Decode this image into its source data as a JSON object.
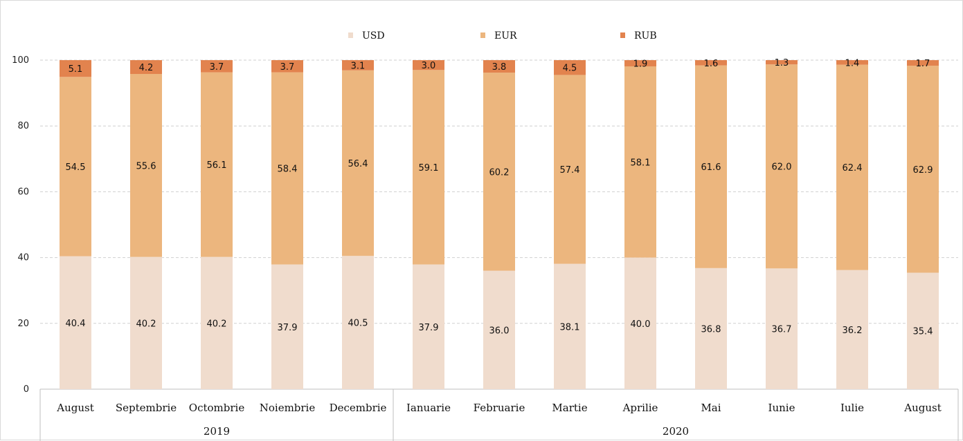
{
  "chart_data": {
    "type": "bar",
    "stacked": true,
    "title": "",
    "xlabel": "",
    "ylabel": "",
    "ylim": [
      0,
      100
    ],
    "yticks": [
      0,
      20,
      40,
      60,
      80,
      100
    ],
    "grid": true,
    "legend_position": "top",
    "categories": [
      "August",
      "Septembrie",
      "Octombrie",
      "Noiembrie",
      "Decembrie",
      "Ianuarie",
      "Februarie",
      "Martie",
      "Aprilie",
      "Mai",
      "Iunie",
      "Iulie",
      "August"
    ],
    "groups": [
      {
        "label": "2019",
        "count": 5
      },
      {
        "label": "2020",
        "count": 8
      }
    ],
    "series": [
      {
        "name": "USD",
        "color": "#f0dccd",
        "values": [
          40.4,
          40.2,
          40.2,
          37.9,
          40.5,
          37.9,
          36.0,
          38.1,
          40.0,
          36.8,
          36.7,
          36.2,
          35.4
        ]
      },
      {
        "name": "EUR",
        "color": "#ecb67e",
        "values": [
          54.5,
          55.6,
          56.1,
          58.4,
          56.4,
          59.1,
          60.2,
          57.4,
          58.1,
          61.6,
          62.0,
          62.4,
          62.9
        ]
      },
      {
        "name": "RUB",
        "color": "#e2834e",
        "values": [
          5.1,
          4.2,
          3.7,
          3.7,
          3.1,
          3.0,
          3.8,
          4.5,
          1.9,
          1.6,
          1.3,
          1.4,
          1.7
        ]
      }
    ],
    "value_labels": [
      [
        "40.4",
        "40.2",
        "40.2",
        "37.9",
        "40.5",
        "37.9",
        "36.0",
        "38.1",
        "40.0",
        "36.8",
        "36.7",
        "36.2",
        "35.4"
      ],
      [
        "54.5",
        "55.6",
        "56.1",
        "58.4",
        "56.4",
        "59.1",
        "60.2",
        "57.4",
        "58.1",
        "61.6",
        "62.0",
        "62.4",
        "62.9"
      ],
      [
        "5.1",
        "4.2",
        "3.7",
        "3.7",
        "3.1",
        "3.0",
        "3.8",
        "4.5",
        "1.9",
        "1.6",
        "1.3",
        "1.4",
        "1.7"
      ]
    ]
  }
}
